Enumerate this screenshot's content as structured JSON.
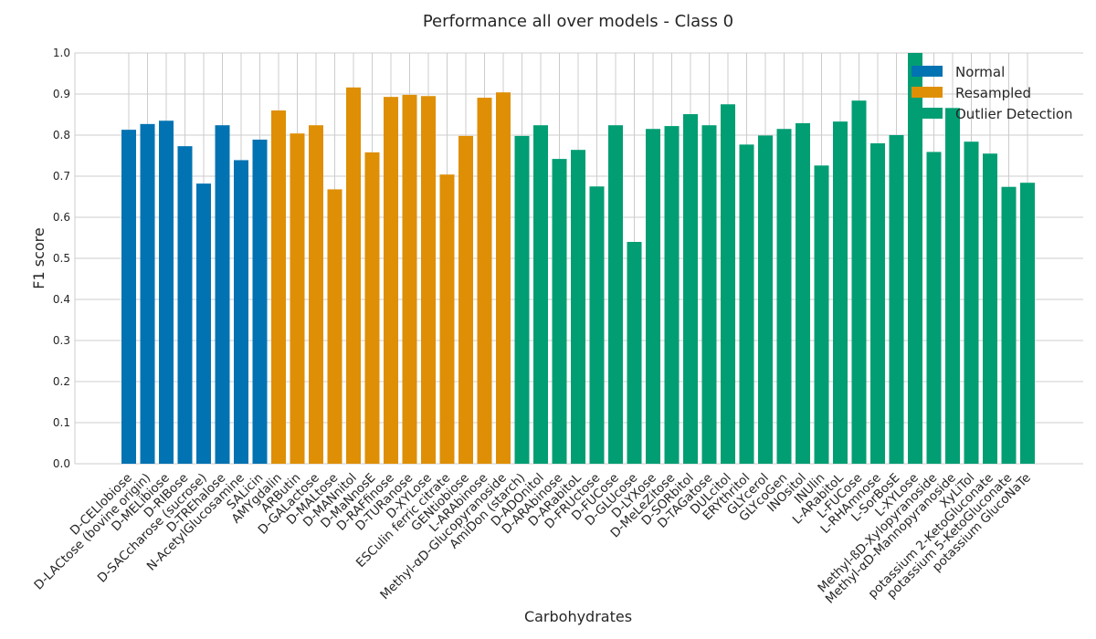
{
  "chart_data": {
    "type": "bar",
    "title": "Performance all over models - Class 0",
    "x_label": "Carbohydrates",
    "y_label": "F1 score",
    "categories": [
      "D-CELlobiose",
      "D-LACtose (bovine origin)",
      "D-MELibiose",
      "D-RIBose",
      "D-SACcharose (sucrose)",
      "D-TREhalose",
      "N-AcetylGlucosamine",
      "SALicin",
      "AMYgdalin",
      "ARButin",
      "D-GALactose",
      "D-MALtose",
      "D-MANnitol",
      "D-MaNnosE",
      "D-RAFfinose",
      "D-TURanose",
      "D-XYLose",
      "ESCulin ferric citrate",
      "GENtiobiose",
      "L-ARAbinose",
      "Methyl-αD-Glucopyranoside",
      "AmiDon (starch)",
      "D-ADOnitol",
      "D-ARAbinose",
      "D-ARabitoL",
      "D-FRUctose",
      "D-FUCose",
      "D-GLUcose",
      "D-LYXose",
      "D-MeLeZitose",
      "D-SORbitol",
      "D-TAGatose",
      "DULcitol",
      "ERYthritol",
      "GLYcerol",
      "GLYcoGen",
      "INOsitol",
      "INUlin",
      "L-ARabitoL",
      "L-FUCose",
      "L-RHAmnose",
      "L-SorBosE",
      "L-XYLose",
      "Methyl-ßD-Xylopyranoside",
      "Methyl-αD-Mannopyranoside",
      "XyLiTol",
      "potassium 2-KetoGluconate",
      "potassium 5-KetoGluconate",
      "potassium GlucoNaTe"
    ],
    "series": [
      {
        "name": "Normal",
        "color": "#0173b2",
        "values": [
          0.813,
          0.827,
          0.835,
          0.773,
          0.682,
          0.824,
          0.739,
          0.789,
          null,
          null,
          null,
          null,
          null,
          null,
          null,
          null,
          null,
          null,
          null,
          null,
          null,
          null,
          null,
          null,
          null,
          null,
          null,
          null,
          null,
          null,
          null,
          null,
          null,
          null,
          null,
          null,
          null,
          null,
          null,
          null,
          null,
          null,
          null,
          null,
          null,
          null,
          null,
          null,
          null
        ]
      },
      {
        "name": "Resampled",
        "color": "#de8f05",
        "values": [
          null,
          null,
          null,
          null,
          null,
          null,
          null,
          null,
          0.86,
          0.804,
          0.824,
          0.668,
          0.916,
          0.758,
          0.893,
          0.898,
          0.895,
          0.704,
          0.798,
          0.891,
          0.904,
          null,
          null,
          null,
          null,
          null,
          null,
          null,
          null,
          null,
          null,
          null,
          null,
          null,
          null,
          null,
          null,
          null,
          null,
          null,
          null,
          null,
          null,
          null,
          null,
          null,
          null,
          null,
          null
        ]
      },
      {
        "name": "Outlier Detection",
        "color": "#029e73",
        "values": [
          null,
          null,
          null,
          null,
          null,
          null,
          null,
          null,
          null,
          null,
          null,
          null,
          null,
          null,
          null,
          null,
          null,
          null,
          null,
          null,
          null,
          0.798,
          0.824,
          0.742,
          0.764,
          0.675,
          0.824,
          0.54,
          0.815,
          0.822,
          0.851,
          0.824,
          0.875,
          0.777,
          0.799,
          0.815,
          0.829,
          0.726,
          0.833,
          0.884,
          0.78,
          0.8,
          1.0,
          0.759,
          0.866,
          0.784,
          0.755,
          0.674,
          0.684
        ]
      }
    ],
    "ylim": [
      0,
      1
    ],
    "yticks": [
      {
        "value": 0,
        "label": "0.0"
      },
      {
        "value": 0.1,
        "label": "0.1"
      },
      {
        "value": 0.2,
        "label": "0.2"
      },
      {
        "value": 0.3,
        "label": "0.3"
      },
      {
        "value": 0.4,
        "label": "0.4"
      },
      {
        "value": 0.5,
        "label": "0.5"
      },
      {
        "value": 0.6,
        "label": "0.6"
      },
      {
        "value": 0.7,
        "label": "0.7"
      },
      {
        "value": 0.8,
        "label": "0.8"
      },
      {
        "value": 0.9,
        "label": "0.9"
      },
      {
        "value": 1,
        "label": "1.0"
      }
    ],
    "grid": true,
    "legend_position": "upper right"
  }
}
